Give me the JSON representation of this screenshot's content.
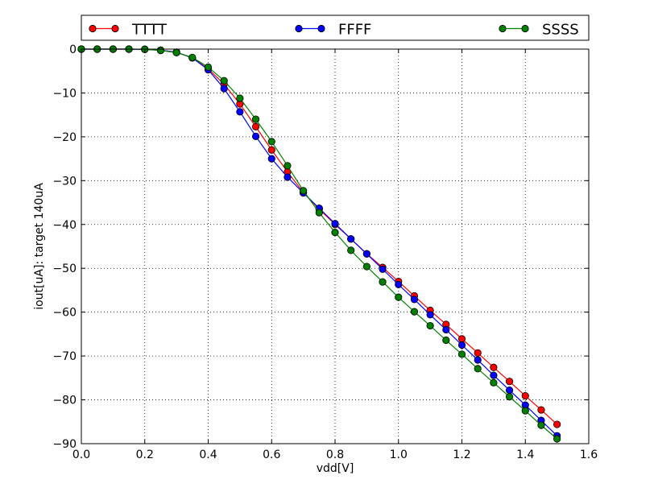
{
  "chart_data": {
    "type": "line",
    "title": "",
    "xlabel": "vdd[V]",
    "ylabel": "iout[uA]: target 140uA",
    "xlim": [
      0.0,
      1.6
    ],
    "ylim": [
      -90,
      0
    ],
    "xticks": [
      0.0,
      0.2,
      0.4,
      0.6,
      0.8,
      1.0,
      1.2,
      1.4,
      1.6
    ],
    "yticks": [
      0,
      -10,
      -20,
      -30,
      -40,
      -50,
      -60,
      -70,
      -80,
      -90
    ],
    "xtick_labels": [
      "0.0",
      "0.2",
      "0.4",
      "0.6",
      "0.8",
      "1.0",
      "1.2",
      "1.4",
      "1.6"
    ],
    "ytick_labels": [
      "0",
      "−10",
      "−20",
      "−30",
      "−40",
      "−50",
      "−60",
      "−70",
      "−80",
      "−90"
    ],
    "grid": true,
    "legend_position": "top",
    "x": [
      0.0,
      0.05,
      0.1,
      0.15,
      0.2,
      0.25,
      0.3,
      0.35,
      0.4,
      0.45,
      0.5,
      0.55,
      0.6,
      0.65,
      0.7,
      0.75,
      0.8,
      0.85,
      0.9,
      0.95,
      1.0,
      1.05,
      1.1,
      1.15,
      1.2,
      1.25,
      1.3,
      1.35,
      1.4,
      1.45,
      1.5
    ],
    "series": [
      {
        "name": "TTTT",
        "color": "#ff0000",
        "values": [
          0,
          0,
          0,
          0,
          -0.05,
          -0.25,
          -0.7,
          -2.0,
          -4.5,
          -8.0,
          -12.5,
          -17.7,
          -23.0,
          -28.0,
          -32.7,
          -36.5,
          -40.0,
          -43.3,
          -46.7,
          -49.8,
          -53.0,
          -56.3,
          -59.6,
          -62.8,
          -66.1,
          -69.3,
          -72.6,
          -75.8,
          -79.1,
          -82.3,
          -85.6
        ]
      },
      {
        "name": "FFFF",
        "color": "#0000ff",
        "values": [
          0,
          0,
          0,
          0,
          -0.05,
          -0.25,
          -0.7,
          -2.0,
          -4.7,
          -9.0,
          -14.3,
          -19.9,
          -25.0,
          -29.2,
          -32.8,
          -36.3,
          -39.8,
          -43.3,
          -46.7,
          -50.2,
          -53.7,
          -57.1,
          -60.6,
          -64.0,
          -67.5,
          -70.9,
          -74.4,
          -77.8,
          -81.2,
          -84.7,
          -88.2
        ]
      },
      {
        "name": "SSSS",
        "color": "#008000",
        "values": [
          0,
          0,
          0,
          0,
          -0.05,
          -0.3,
          -0.8,
          -1.9,
          -4.1,
          -7.2,
          -11.2,
          -16.0,
          -21.1,
          -26.6,
          -32.3,
          -37.3,
          -41.8,
          -45.9,
          -49.6,
          -53.1,
          -56.6,
          -59.9,
          -63.1,
          -66.4,
          -69.6,
          -72.9,
          -76.1,
          -79.3,
          -82.5,
          -85.8,
          -88.9
        ]
      }
    ]
  }
}
